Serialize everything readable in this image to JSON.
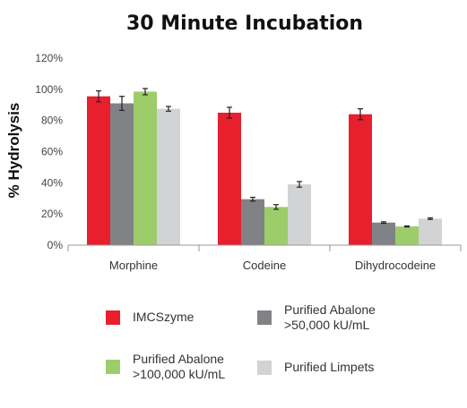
{
  "chart_data": {
    "type": "bar",
    "title": "30 Minute Incubation",
    "ylabel": "% Hydrolysis",
    "xlabel": "",
    "ylim": [
      0,
      120
    ],
    "yticks": [
      "0%",
      "20%",
      "40%",
      "60%",
      "80%",
      "100%",
      "120%"
    ],
    "grid": false,
    "legend_position": "bottom",
    "categories": [
      "Morphine",
      "Codeine",
      "Dihydrocodeine"
    ],
    "series": [
      {
        "name": "IMCSzyme",
        "color": "#e81f2d",
        "values": [
          95.5,
          85,
          84
        ],
        "errors": [
          3.5,
          3.5,
          3.5
        ]
      },
      {
        "name": "Purified Abalone\n>50,000 kU/mL",
        "color": "#808285",
        "values": [
          91,
          29.5,
          14.5
        ],
        "errors": [
          4.5,
          1.2,
          0.5
        ]
      },
      {
        "name": "Purified Abalone\n>100,000 kU/mL",
        "color": "#9dcd6a",
        "values": [
          98.5,
          24.5,
          12
        ],
        "errors": [
          2,
          1.5,
          0.3
        ]
      },
      {
        "name": "Purified Limpets",
        "color": "#d1d3d4",
        "values": [
          87.5,
          39,
          17
        ],
        "errors": [
          1.5,
          1.8,
          0.5
        ]
      }
    ]
  }
}
